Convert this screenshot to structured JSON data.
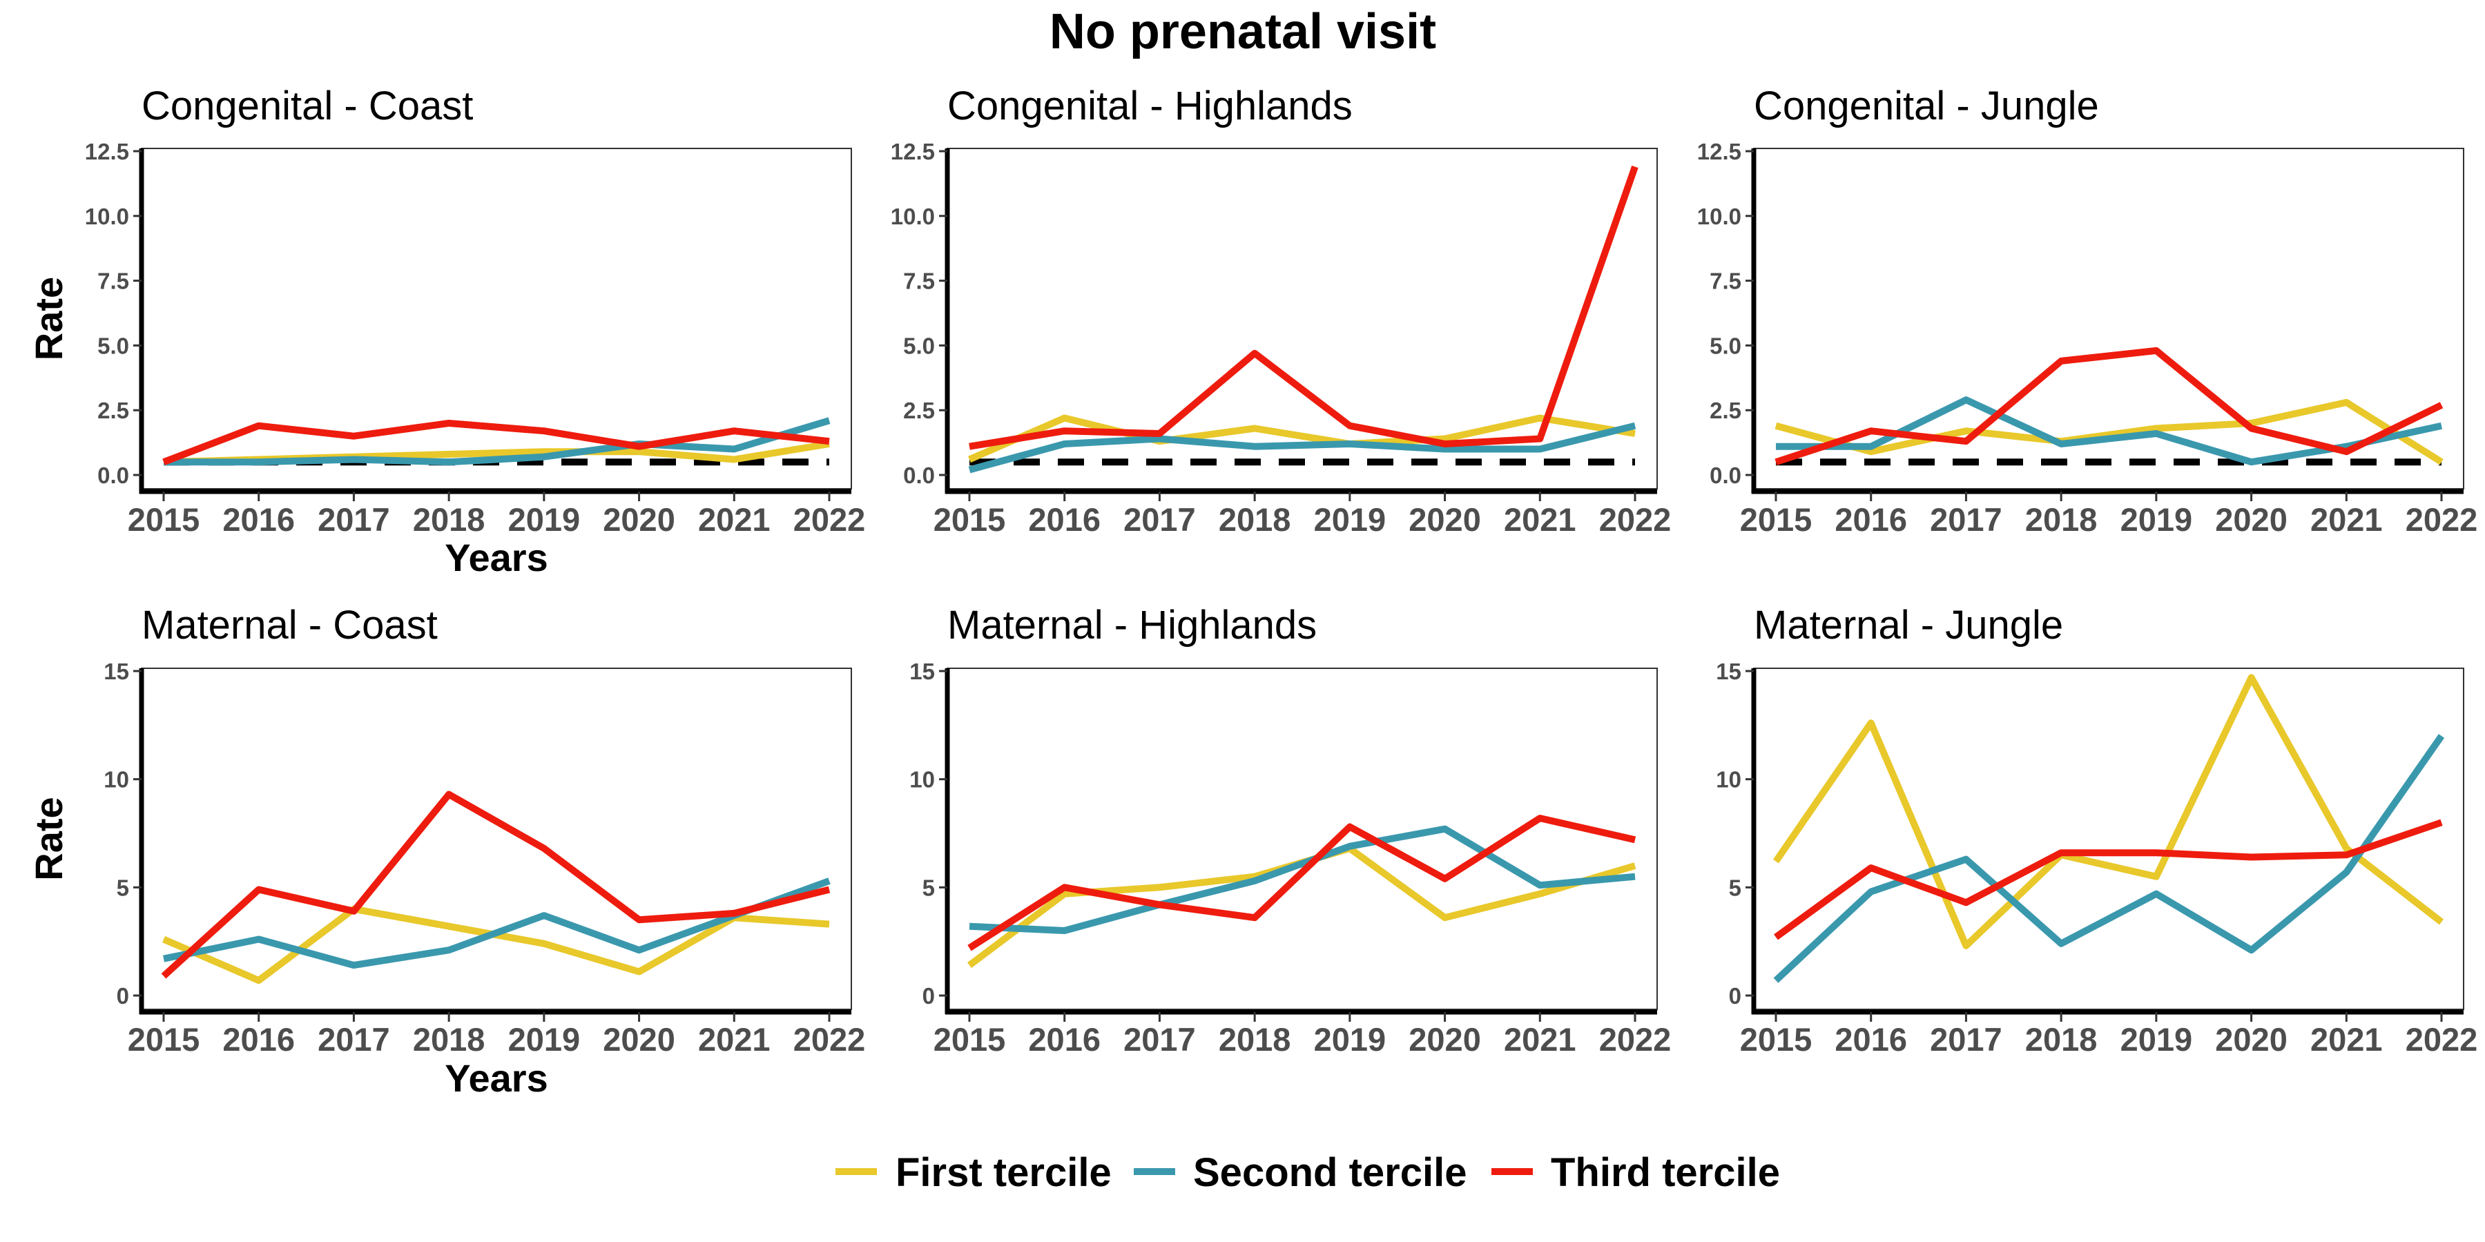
{
  "chart_data": {
    "type": "line",
    "title": "No prenatal visit",
    "x": [
      2015,
      2016,
      2017,
      2018,
      2019,
      2020,
      2021,
      2022
    ],
    "legend": {
      "placement": "bottom",
      "entries": [
        {
          "name": "First tercile",
          "color": "#e8c82a"
        },
        {
          "name": "Second tercile",
          "color": "#3a98ad"
        },
        {
          "name": "Third tercile",
          "color": "#ee1c0e"
        }
      ]
    },
    "panels": [
      {
        "title": "Congenital - Coast",
        "ylabel": "Rate",
        "xlabel": "Years",
        "ylim": [
          0,
          12.5
        ],
        "yticks": [
          "0.0",
          "2.5",
          "5.0",
          "7.5",
          "10.0",
          "12.5"
        ],
        "reference_line": 0.5,
        "series": [
          {
            "name": "First tercile",
            "values": [
              0.5,
              0.6,
              0.7,
              0.8,
              0.9,
              0.9,
              0.6,
              1.2
            ]
          },
          {
            "name": "Second tercile",
            "values": [
              0.5,
              0.5,
              0.6,
              0.5,
              0.7,
              1.2,
              1.0,
              2.1
            ]
          },
          {
            "name": "Third tercile",
            "values": [
              0.5,
              1.9,
              1.5,
              2.0,
              1.7,
              1.1,
              1.7,
              1.3
            ]
          }
        ]
      },
      {
        "title": "Congenital - Highlands",
        "ylabel": "",
        "xlabel": "",
        "ylim": [
          0,
          12.5
        ],
        "yticks": [
          "0.0",
          "2.5",
          "5.0",
          "7.5",
          "10.0",
          "12.5"
        ],
        "reference_line": 0.5,
        "series": [
          {
            "name": "First tercile",
            "values": [
              0.6,
              2.2,
              1.3,
              1.8,
              1.2,
              1.4,
              2.2,
              1.6
            ]
          },
          {
            "name": "Second tercile",
            "values": [
              0.2,
              1.2,
              1.4,
              1.1,
              1.2,
              1.0,
              1.0,
              1.9
            ]
          },
          {
            "name": "Third tercile",
            "values": [
              1.1,
              1.7,
              1.6,
              4.7,
              1.9,
              1.2,
              1.4,
              11.9
            ]
          }
        ]
      },
      {
        "title": "Congenital - Jungle",
        "ylabel": "",
        "xlabel": "",
        "ylim": [
          0,
          12.5
        ],
        "yticks": [
          "0.0",
          "2.5",
          "5.0",
          "7.5",
          "10.0",
          "12.5"
        ],
        "reference_line": 0.5,
        "series": [
          {
            "name": "First tercile",
            "values": [
              1.9,
              0.9,
              1.7,
              1.3,
              1.8,
              2.0,
              2.8,
              0.5
            ]
          },
          {
            "name": "Second tercile",
            "values": [
              1.1,
              1.1,
              2.9,
              1.2,
              1.6,
              0.5,
              1.1,
              1.9
            ]
          },
          {
            "name": "Third tercile",
            "values": [
              0.5,
              1.7,
              1.3,
              4.4,
              4.8,
              1.8,
              0.9,
              2.7
            ]
          }
        ]
      },
      {
        "title": "Maternal - Coast",
        "ylabel": "Rate",
        "xlabel": "Years",
        "ylim": [
          0,
          15
        ],
        "yticks": [
          "0",
          "5",
          "10",
          "15"
        ],
        "series": [
          {
            "name": "First tercile",
            "values": [
              2.6,
              0.7,
              4.0,
              3.2,
              2.4,
              1.1,
              3.6,
              3.3
            ]
          },
          {
            "name": "Second tercile",
            "values": [
              1.7,
              2.6,
              1.4,
              2.1,
              3.7,
              2.1,
              3.7,
              5.3
            ]
          },
          {
            "name": "Third tercile",
            "values": [
              0.9,
              4.9,
              3.9,
              9.3,
              6.8,
              3.5,
              3.8,
              4.9
            ]
          }
        ]
      },
      {
        "title": "Maternal - Highlands",
        "ylabel": "",
        "xlabel": "",
        "ylim": [
          0,
          15
        ],
        "yticks": [
          "0",
          "5",
          "10",
          "15"
        ],
        "series": [
          {
            "name": "First tercile",
            "values": [
              1.4,
              4.7,
              5.0,
              5.5,
              6.8,
              3.6,
              4.7,
              6.0
            ]
          },
          {
            "name": "Second tercile",
            "values": [
              3.2,
              3.0,
              4.2,
              5.3,
              6.9,
              7.7,
              5.1,
              5.5
            ]
          },
          {
            "name": "Third tercile",
            "values": [
              2.2,
              5.0,
              4.2,
              3.6,
              7.8,
              5.4,
              8.2,
              7.2
            ]
          }
        ]
      },
      {
        "title": "Maternal - Jungle",
        "ylabel": "",
        "xlabel": "",
        "ylim": [
          0,
          15
        ],
        "yticks": [
          "0",
          "5",
          "10",
          "15"
        ],
        "series": [
          {
            "name": "First tercile",
            "values": [
              6.2,
              12.6,
              2.3,
              6.5,
              5.5,
              14.7,
              6.8,
              3.4
            ]
          },
          {
            "name": "Second tercile",
            "values": [
              0.7,
              4.8,
              6.3,
              2.4,
              4.7,
              2.1,
              5.7,
              12.0
            ]
          },
          {
            "name": "Third tercile",
            "values": [
              2.7,
              5.9,
              4.3,
              6.6,
              6.6,
              6.4,
              6.5,
              8.0
            ]
          }
        ]
      }
    ]
  }
}
